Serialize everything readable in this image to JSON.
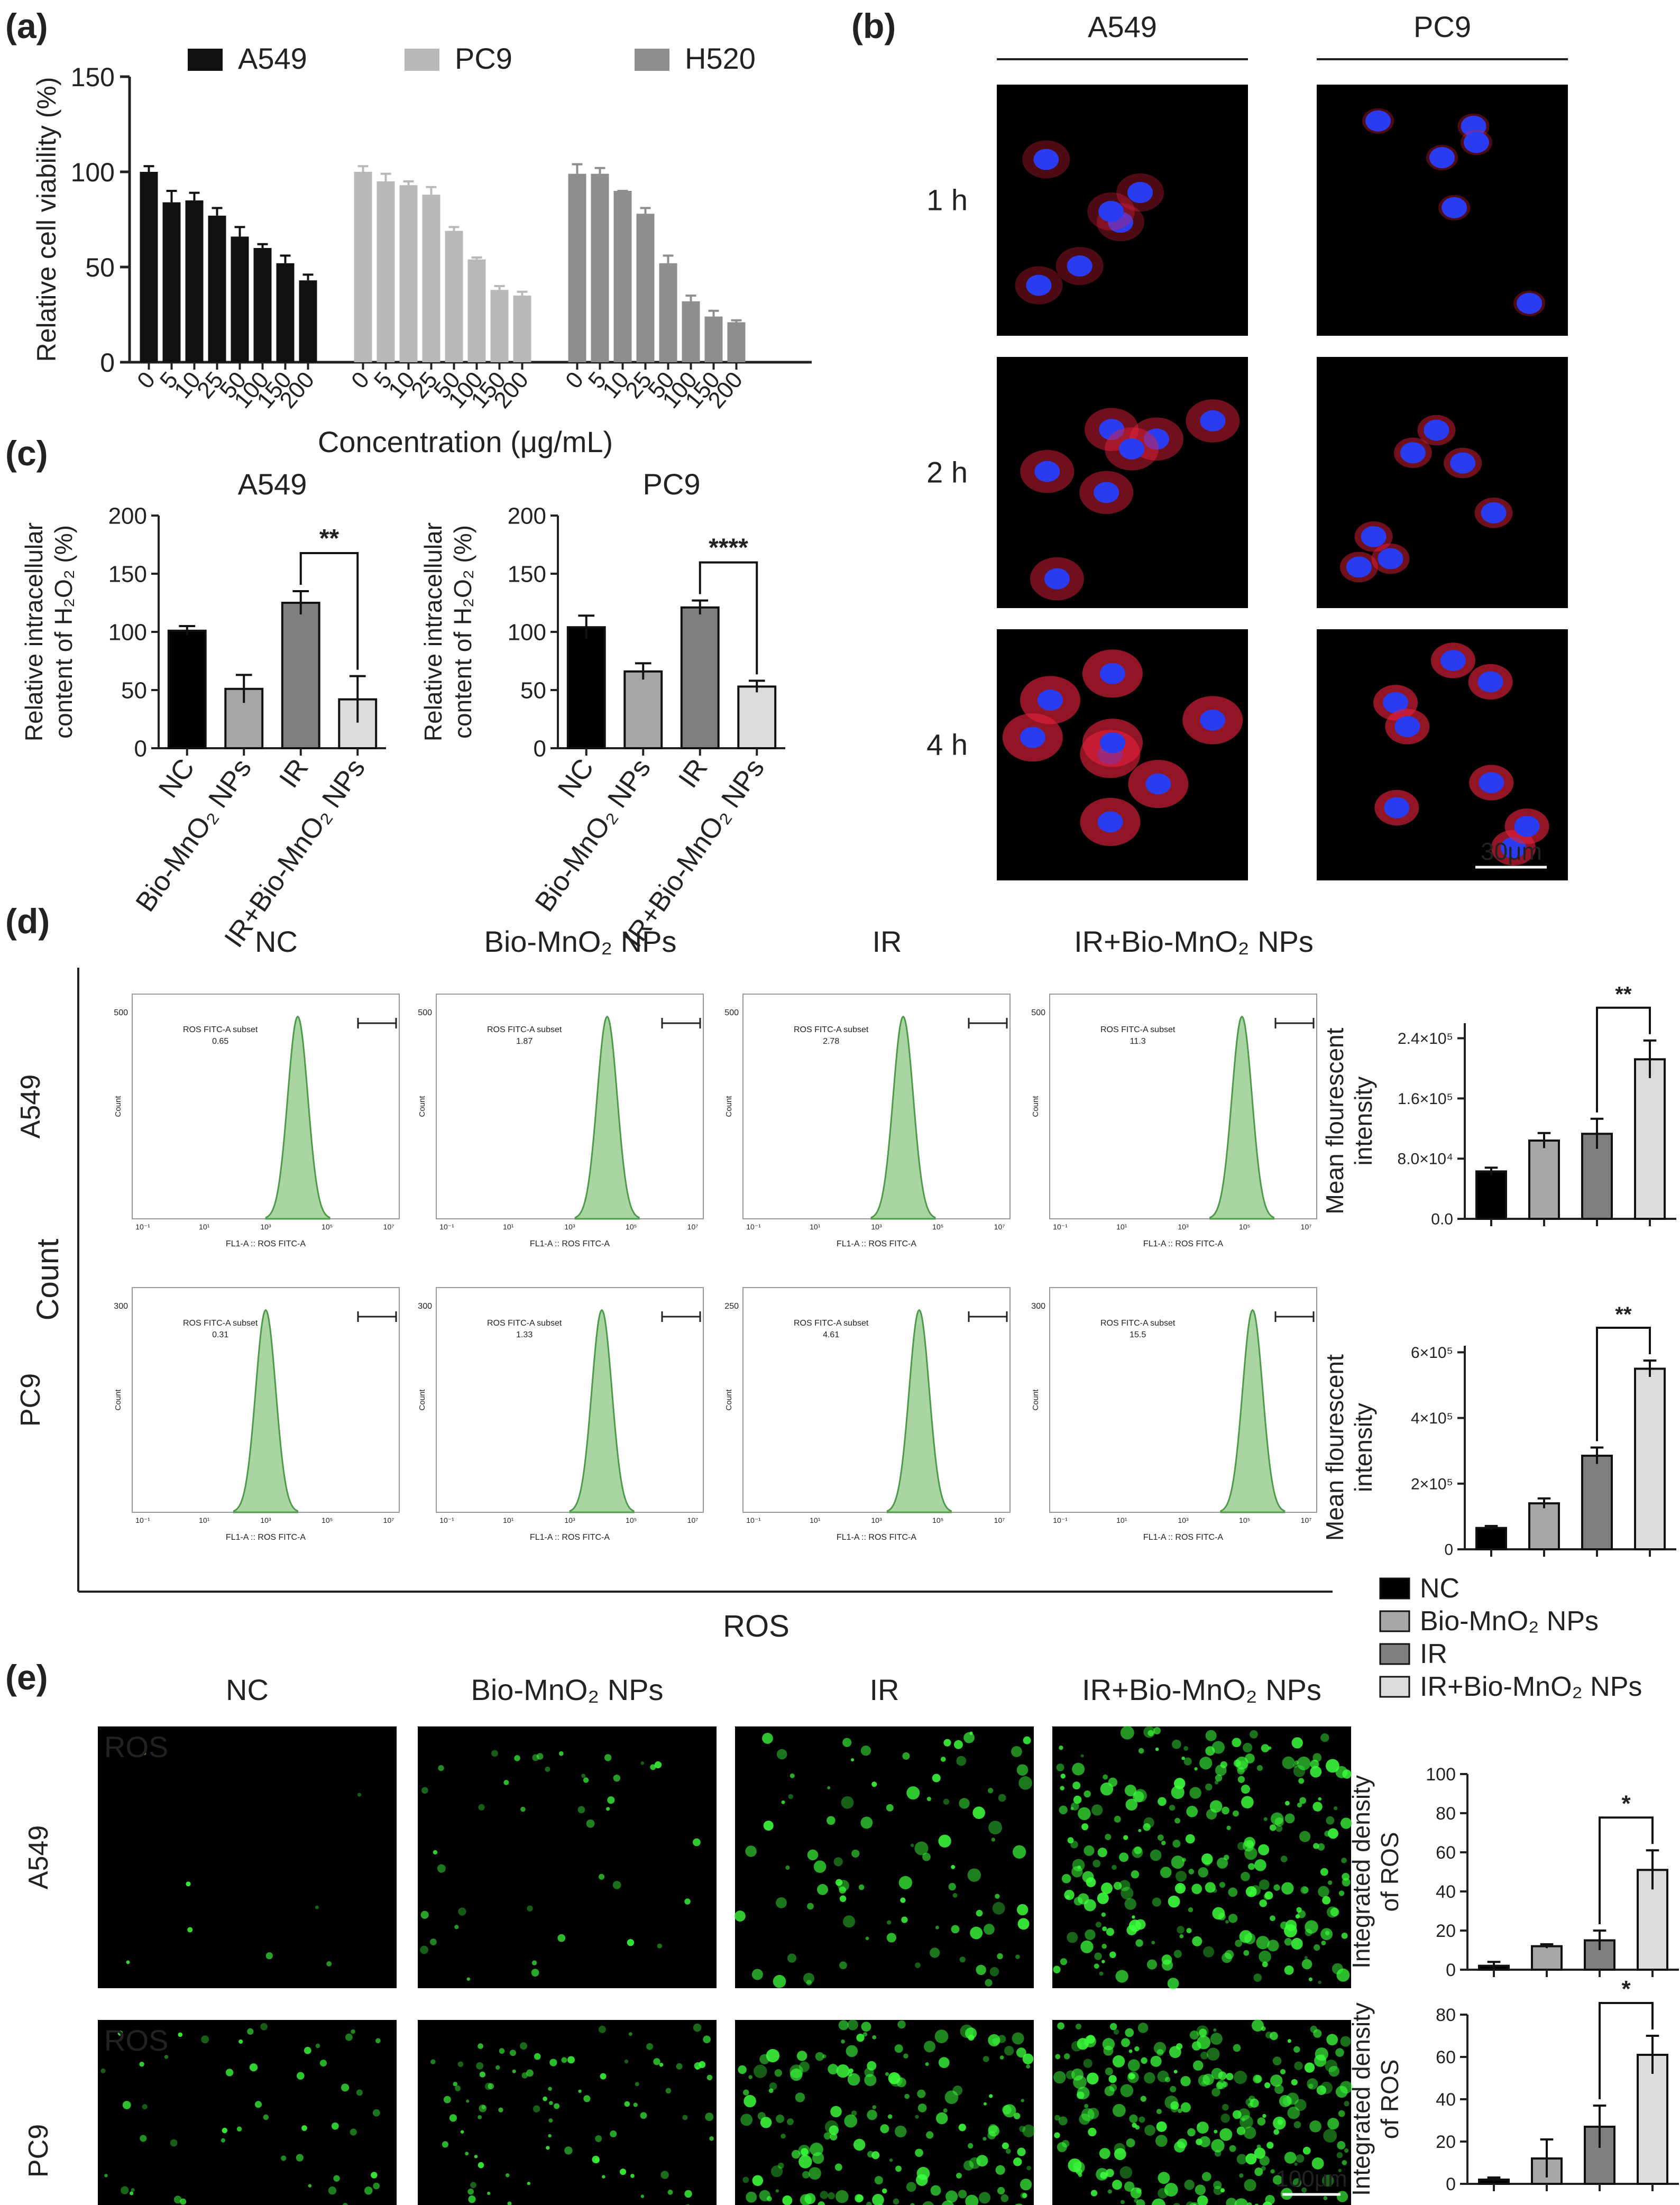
{
  "panels": {
    "a": "(a)",
    "b": "(b)",
    "c": "(c)",
    "d": "(d)",
    "e": "(e)"
  },
  "colors": {
    "a549": "#111111",
    "pc9": "#b8b8b8",
    "h520": "#8e8e8e",
    "nc": "#000000",
    "bio": "#a6a6a6",
    "ir": "#7f7f7f",
    "irbio": "#dcdcdc",
    "histogram": "#a8d5a2",
    "histogram_line": "#4e9a4a",
    "micro_red": "#e0203a",
    "micro_blue": "#2a3cf0",
    "ros_green": "#3cff3c"
  },
  "chart_data": [
    {
      "id": "a",
      "type": "bar",
      "ylabel": "Relative cell viability (%)",
      "xlabel": "Concentration (μg/mL)",
      "ylim": [
        0,
        150
      ],
      "yticks": [
        0,
        50,
        100,
        150
      ],
      "categories": [
        "0",
        "5",
        "10",
        "25",
        "50",
        "100",
        "150",
        "200"
      ],
      "series": [
        {
          "name": "A549",
          "values": [
            100,
            84,
            85,
            77,
            66,
            60,
            52,
            43
          ],
          "errors": [
            3,
            6,
            4,
            4,
            5,
            2,
            4,
            3
          ]
        },
        {
          "name": "PC9",
          "values": [
            100,
            95,
            93,
            88,
            69,
            54,
            38,
            35
          ],
          "errors": [
            3,
            4,
            2,
            4,
            2,
            1,
            2,
            2
          ]
        },
        {
          "name": "H520",
          "values": [
            99,
            99,
            90,
            78,
            52,
            32,
            24,
            21
          ],
          "errors": [
            5,
            3,
            0,
            3,
            4,
            3,
            3,
            1
          ]
        }
      ]
    },
    {
      "id": "c1",
      "type": "bar",
      "title": "A549",
      "ylabel": "Relative intracellular content of H₂O₂ (%)",
      "ylim": [
        0,
        200
      ],
      "yticks": [
        0,
        50,
        100,
        150,
        200
      ],
      "categories": [
        "NC",
        "Bio-MnO₂ NPs",
        "IR",
        "IR+Bio-MnO₂ NPs"
      ],
      "values": [
        101,
        51,
        125,
        42
      ],
      "errors": [
        4,
        12,
        10,
        20
      ],
      "significance": {
        "from": 2,
        "to": 3,
        "label": "**"
      }
    },
    {
      "id": "c2",
      "type": "bar",
      "title": "PC9",
      "ylabel": "Relative intracellular content of H₂O₂ (%)",
      "ylim": [
        0,
        200
      ],
      "yticks": [
        0,
        50,
        100,
        150,
        200
      ],
      "categories": [
        "NC",
        "Bio-MnO₂ NPs",
        "IR",
        "IR+Bio-MnO₂ NPs"
      ],
      "values": [
        104,
        66,
        121,
        53
      ],
      "errors": [
        10,
        7,
        6,
        5
      ],
      "significance": {
        "from": 2,
        "to": 3,
        "label": "****"
      }
    },
    {
      "id": "d1",
      "type": "bar",
      "ylabel": "Mean flourescent intensity",
      "ylim": [
        0,
        260000
      ],
      "ytick_values": [
        0,
        80000,
        160000,
        240000
      ],
      "ytick_labels": [
        "0.0",
        "8.0×10⁴",
        "1.6×10⁵",
        "2.4×10⁵"
      ],
      "values": [
        63000,
        104000,
        113000,
        212000
      ],
      "errors": [
        5000,
        10000,
        20000,
        25000
      ],
      "significance": {
        "from": 2,
        "to": 3,
        "label": "**"
      }
    },
    {
      "id": "d2",
      "type": "bar",
      "ylabel": "Mean flourescent intensity",
      "ylim": [
        0,
        620000
      ],
      "ytick_values": [
        0,
        200000,
        400000,
        600000
      ],
      "ytick_labels": [
        "0",
        "2×10⁵",
        "4×10⁵",
        "6×10⁵"
      ],
      "values": [
        65000,
        140000,
        285000,
        550000
      ],
      "errors": [
        6000,
        15000,
        25000,
        25000
      ],
      "significance": {
        "from": 2,
        "to": 3,
        "label": "**"
      }
    },
    {
      "id": "e1",
      "type": "bar",
      "ylabel": "Integrated density of ROS",
      "ylim": [
        0,
        100
      ],
      "yticks": [
        0,
        20,
        40,
        60,
        80,
        100
      ],
      "values": [
        2,
        12,
        15,
        51
      ],
      "errors": [
        2,
        1,
        5,
        10
      ],
      "significance": {
        "from": 2,
        "to": 3,
        "label": "*"
      }
    },
    {
      "id": "e2",
      "type": "bar",
      "ylabel": "Integrated density of ROS",
      "ylim": [
        0,
        80
      ],
      "yticks": [
        0,
        20,
        40,
        60,
        80
      ],
      "values": [
        2,
        12,
        27,
        61
      ],
      "errors": [
        1,
        9,
        10,
        9
      ],
      "significance": {
        "from": 2,
        "to": 3,
        "label": "*"
      }
    }
  ],
  "legend_groups": [
    "NC",
    "Bio-MnO₂ NPs",
    "IR",
    "IR+Bio-MnO₂ NPs"
  ],
  "panel_b": {
    "columns": [
      "A549",
      "PC9"
    ],
    "rows": [
      "1 h",
      "2 h",
      "4 h"
    ],
    "scale_bar": "30μm"
  },
  "panel_d": {
    "columns": [
      "NC",
      "Bio-MnO₂ NPs",
      "IR",
      "IR+Bio-MnO₂ NPs"
    ],
    "rows": [
      "A549",
      "PC9"
    ],
    "y_axis_title": "Count",
    "x_axis_title": "ROS",
    "hist_ylabel": "Count",
    "hist_xlabel": "FL1-A :: ROS FITC-A",
    "subset_label": "ROS FITC-A subset",
    "log_ticks": [
      "10⁻¹",
      "10¹",
      "10³",
      "10⁵",
      "10⁷"
    ],
    "hist_ymax": [
      [
        "500"
      ],
      [
        "300",
        "300",
        "250",
        "300"
      ]
    ],
    "subsets": [
      [
        "0.65",
        "1.87",
        "2.78",
        "11.3"
      ],
      [
        "0.31",
        "1.33",
        "4.61",
        "15.5"
      ]
    ]
  },
  "panel_e": {
    "columns": [
      "NC",
      "Bio-MnO₂ NPs",
      "IR",
      "IR+Bio-MnO₂ NPs"
    ],
    "rows": [
      "A549",
      "PC9"
    ],
    "stain": "ROS",
    "scale_bar": "100μm"
  }
}
